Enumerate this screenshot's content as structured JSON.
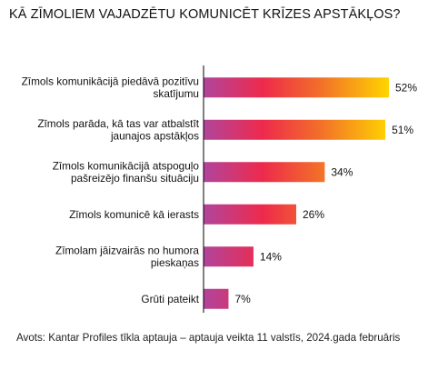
{
  "chart_data": {
    "type": "bar",
    "orientation": "horizontal",
    "title": "KĀ ZĪMOLIEM VAJADZĒTU KOMUNICĒT KRĪZES APSTĀKĻOS?",
    "categories": [
      [
        "Zīmols komunikācijā piedāvā pozitīvu",
        "skatījumu"
      ],
      [
        "Zīmols parāda, kā tas var atbalstīt",
        "jaunajos apstākļos"
      ],
      [
        "Zīmols komunikācijā atspoguļo",
        "pašreizējo finanšu situāciju"
      ],
      [
        "Zīmols komunicē kā ierasts"
      ],
      [
        "Zīmolam jāizvairās no humora",
        "pieskaņas"
      ],
      [
        "Grūti pateikt"
      ]
    ],
    "values": [
      52,
      51,
      34,
      26,
      14,
      7
    ],
    "value_labels": [
      "52%",
      "51%",
      "34%",
      "26%",
      "14%",
      "7%"
    ],
    "xlim": [
      0,
      52
    ],
    "grid": false,
    "legend": "none",
    "colors": {
      "gradient_start": "#b0459c",
      "gradient_mid": "#ee2a4c",
      "gradient_orange": "#f26d2a",
      "gradient_end": "#ffd400",
      "axis": "#000000"
    }
  },
  "source": "Avots: Kantar Profiles tīkla aptauja – aptauja veikta 11 valstīs, 2024.gada februāris"
}
